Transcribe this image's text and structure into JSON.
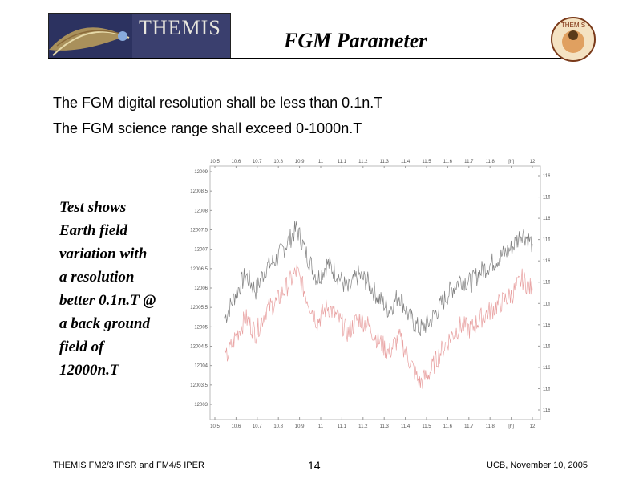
{
  "header": {
    "logo_text": "THEMIS",
    "title": "FGM Parameter",
    "emblem_text": "THEMIS"
  },
  "requirements": [
    "The FGM digital resolution shall be less than 0.1n.T",
    "The FGM science range shall exceed 0-1000n.T"
  ],
  "note_lines": [
    "Test shows",
    "Earth field",
    "variation with",
    "a resolution",
    "better 0.1n.T @",
    "a back ground",
    "field of",
    "12000n.T"
  ],
  "footer": {
    "left": "THEMIS FM2/3 IPSR and FM4/5 IPER",
    "page": "14",
    "right": "UCB, November 10, 2005"
  },
  "colors": {
    "series1": "#808080",
    "series2": "#e8a0a0"
  },
  "chart_data": {
    "type": "line",
    "x_ticks_top": [
      "10.5",
      "10.6",
      "10.7",
      "10.8",
      "10.9",
      "11",
      "11.1",
      "11.2",
      "11.3",
      "11.4",
      "11.5",
      "11.6",
      "11.7",
      "11.8",
      "[h]",
      "12"
    ],
    "x_ticks_bottom": [
      "10.5",
      "10.6",
      "10.7",
      "10.8",
      "10.9",
      "11",
      "11.1",
      "11.2",
      "11.3",
      "11.4",
      "11.5",
      "11.6",
      "11.7",
      "11.8",
      "[h]",
      "12"
    ],
    "y_left_ticks": [
      "12009",
      "12008.5",
      "12008",
      "12007.5",
      "12007",
      "12006.5",
      "12006",
      "12005.5",
      "12005",
      "12004.5",
      "12004",
      "12003.5",
      "12003"
    ],
    "y_right_ticks": [
      "11627.5",
      "11627",
      "11626.5",
      "11626",
      "11625.5",
      "11625",
      "11624.5",
      "11624",
      "11623.5",
      "11623",
      "11622.5",
      "11622"
    ],
    "xlim": [
      10.45,
      12.0
    ],
    "ylim_left": [
      12002.8,
      12009.0
    ],
    "grid": false,
    "series": [
      {
        "x": [
          10.5,
          10.55,
          10.6,
          10.65,
          10.7,
          10.75,
          10.8,
          10.85,
          10.9,
          10.95,
          11.0,
          11.05,
          11.1,
          11.15,
          11.2,
          11.25,
          11.3,
          11.35,
          11.4,
          11.45,
          11.5,
          11.55,
          11.6,
          11.65,
          11.7,
          11.75,
          11.8,
          11.85,
          11.9,
          11.95,
          12.0
        ],
        "values": [
          12005.3,
          12005.9,
          12006.4,
          12006.0,
          12006.6,
          12006.8,
          12007.2,
          12007.6,
          12006.9,
          12006.3,
          12006.7,
          12006.4,
          12006.0,
          12006.4,
          12006.2,
          12005.8,
          12005.5,
          12005.9,
          12005.3,
          12005.0,
          12005.2,
          12005.6,
          12006.0,
          12006.3,
          12006.2,
          12006.5,
          12006.7,
          12006.9,
          12007.1,
          12007.5,
          12007.2
        ]
      },
      {
        "x": [
          10.5,
          10.55,
          10.6,
          10.65,
          10.7,
          10.75,
          10.8,
          10.85,
          10.9,
          10.95,
          11.0,
          11.05,
          11.1,
          11.15,
          11.2,
          11.25,
          11.3,
          11.35,
          11.4,
          11.45,
          11.5,
          11.55,
          11.6,
          11.65,
          11.7,
          11.75,
          11.8,
          11.85,
          11.9,
          11.95,
          12.0
        ],
        "values": [
          12004.2,
          12004.8,
          12005.3,
          12004.9,
          12005.5,
          12005.7,
          12006.1,
          12006.5,
          12005.8,
          12005.2,
          12005.6,
          12005.3,
          12004.9,
          12005.3,
          12005.1,
          12004.7,
          12004.4,
          12004.8,
          12004.2,
          12003.6,
          12003.9,
          12004.4,
          12004.8,
          12005.1,
          12005.0,
          12005.3,
          12005.5,
          12005.7,
          12005.9,
          12006.3,
          12006.0
        ]
      }
    ]
  }
}
